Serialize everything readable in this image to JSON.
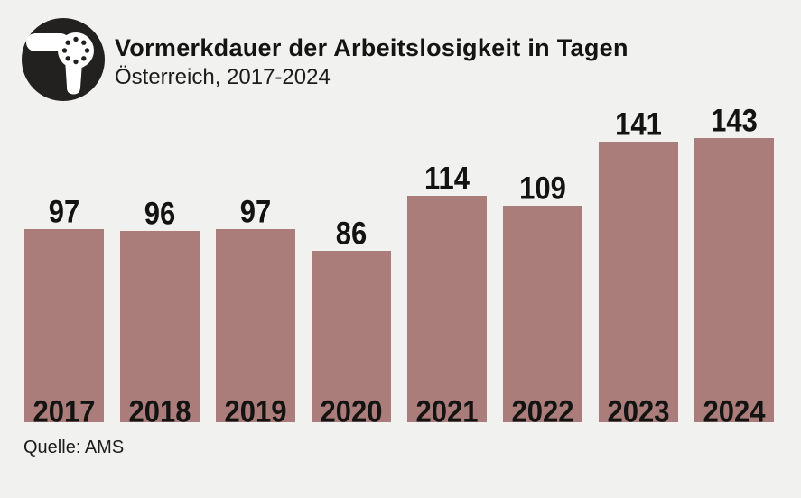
{
  "header": {
    "title": "Vormerkdauer der Arbeitslosigkeit in Tagen",
    "subtitle": "Österreich, 2017-2024",
    "logo_icon": "hair-dryer-icon"
  },
  "footer": {
    "source": "Quelle: AMS"
  },
  "colors": {
    "background": "#f1f1ef",
    "bar": "#aa7c7a",
    "text": "#181817",
    "logo_circle": "#22211f",
    "logo_glyph": "#ffffff"
  },
  "chart_data": {
    "type": "bar",
    "categories": [
      "2017",
      "2018",
      "2019",
      "2020",
      "2021",
      "2022",
      "2023",
      "2024"
    ],
    "values": [
      97,
      96,
      97,
      86,
      114,
      109,
      141,
      143
    ],
    "title": "Vormerkdauer der Arbeitslosigkeit in Tagen",
    "subtitle": "Österreich, 2017-2024",
    "source": "Quelle: AMS",
    "xlabel": "",
    "ylabel": "",
    "ylim": [
      0,
      160
    ],
    "grid": false,
    "legend": false,
    "bar_color": "#aa7c7a",
    "value_labels": "above-bars",
    "category_labels": "inside-bar-bottom"
  }
}
